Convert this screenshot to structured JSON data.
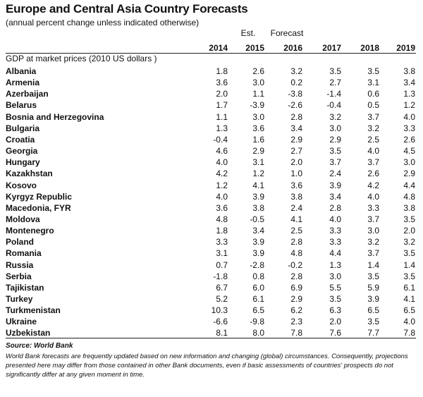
{
  "chart_data": {
    "type": "table",
    "title": "Europe and Central Asia Country Forecasts",
    "subtitle": "(annual percent change unless indicated otherwise)",
    "column_annotations": {
      "est": "Est.",
      "forecast": "Forecast"
    },
    "years": [
      "2014",
      "2015",
      "2016",
      "2017",
      "2018",
      "2019"
    ],
    "measure_label": "GDP at market prices (2010 US dollars )",
    "rows": [
      {
        "country": "Albania",
        "values": [
          "1.8",
          "2.6",
          "3.2",
          "3.5",
          "3.5",
          "3.8"
        ]
      },
      {
        "country": "Armenia",
        "values": [
          "3.6",
          "3.0",
          "0.2",
          "2.7",
          "3.1",
          "3.4"
        ]
      },
      {
        "country": "Azerbaijan",
        "values": [
          "2.0",
          "1.1",
          "-3.8",
          "-1.4",
          "0.6",
          "1.3"
        ]
      },
      {
        "country": "Belarus",
        "values": [
          "1.7",
          "-3.9",
          "-2.6",
          "-0.4",
          "0.5",
          "1.2"
        ]
      },
      {
        "country": "Bosnia and Herzegovina",
        "values": [
          "1.1",
          "3.0",
          "2.8",
          "3.2",
          "3.7",
          "4.0"
        ]
      },
      {
        "country": "Bulgaria",
        "values": [
          "1.3",
          "3.6",
          "3.4",
          "3.0",
          "3.2",
          "3.3"
        ]
      },
      {
        "country": "Croatia",
        "values": [
          "-0.4",
          "1.6",
          "2.9",
          "2.9",
          "2.5",
          "2.6"
        ]
      },
      {
        "country": "Georgia",
        "values": [
          "4.6",
          "2.9",
          "2.7",
          "3.5",
          "4.0",
          "4.5"
        ]
      },
      {
        "country": "Hungary",
        "values": [
          "4.0",
          "3.1",
          "2.0",
          "3.7",
          "3.7",
          "3.0"
        ]
      },
      {
        "country": "Kazakhstan",
        "values": [
          "4.2",
          "1.2",
          "1.0",
          "2.4",
          "2.6",
          "2.9"
        ]
      },
      {
        "country": "Kosovo",
        "values": [
          "1.2",
          "4.1",
          "3.6",
          "3.9",
          "4.2",
          "4.4"
        ]
      },
      {
        "country": "Kyrgyz Republic",
        "values": [
          "4.0",
          "3.9",
          "3.8",
          "3.4",
          "4.0",
          "4.8"
        ]
      },
      {
        "country": "Macedonia, FYR",
        "values": [
          "3.6",
          "3.8",
          "2.4",
          "2.8",
          "3.3",
          "3.8"
        ]
      },
      {
        "country": "Moldova",
        "values": [
          "4.8",
          "-0.5",
          "4.1",
          "4.0",
          "3.7",
          "3.5"
        ]
      },
      {
        "country": "Montenegro",
        "values": [
          "1.8",
          "3.4",
          "2.5",
          "3.3",
          "3.0",
          "2.0"
        ]
      },
      {
        "country": "Poland",
        "values": [
          "3.3",
          "3.9",
          "2.8",
          "3.3",
          "3.2",
          "3.2"
        ]
      },
      {
        "country": "Romania",
        "values": [
          "3.1",
          "3.9",
          "4.8",
          "4.4",
          "3.7",
          "3.5"
        ]
      },
      {
        "country": "Russia",
        "values": [
          "0.7",
          "-2.8",
          "-0.2",
          "1.3",
          "1.4",
          "1.4"
        ]
      },
      {
        "country": "Serbia",
        "values": [
          "-1.8",
          "0.8",
          "2.8",
          "3.0",
          "3.5",
          "3.5"
        ]
      },
      {
        "country": "Tajikistan",
        "values": [
          "6.7",
          "6.0",
          "6.9",
          "5.5",
          "5.9",
          "6.1"
        ]
      },
      {
        "country": "Turkey",
        "values": [
          "5.2",
          "6.1",
          "2.9",
          "3.5",
          "3.9",
          "4.1"
        ]
      },
      {
        "country": "Turkmenistan",
        "values": [
          "10.3",
          "6.5",
          "6.2",
          "6.3",
          "6.5",
          "6.5"
        ]
      },
      {
        "country": "Ukraine",
        "values": [
          "-6.6",
          "-9.8",
          "2.3",
          "2.0",
          "3.5",
          "4.0"
        ]
      },
      {
        "country": "Uzbekistan",
        "values": [
          "8.1",
          "8.0",
          "7.8",
          "7.6",
          "7.7",
          "7.8"
        ]
      }
    ],
    "source": "Source: World Bank",
    "note": "World Bank forecasts are frequently updated based on new information and changing (global) circumstances. Consequently, projections presented here may differ from those contained in other Bank documents, even if basic assessments of countries' prospects do not significantly differ at any given moment in time."
  }
}
